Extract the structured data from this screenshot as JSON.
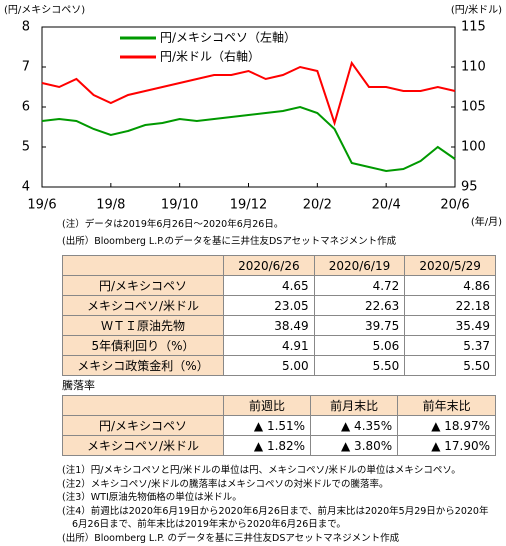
{
  "chart_data": {
    "type": "line",
    "y_label": "(円/メキシコペソ)",
    "y2_label": "(円/米ドル)",
    "x_unit": "(年/月)",
    "categories": [
      "19/6",
      null,
      null,
      null,
      "19/8",
      null,
      null,
      null,
      "19/10",
      null,
      null,
      null,
      "19/12",
      null,
      null,
      null,
      "20/2",
      null,
      null,
      null,
      "20/4",
      null,
      null,
      null,
      "20/6"
    ],
    "series": [
      {
        "name": "円/メキシコペソ（左軸）",
        "color": "#009900",
        "values": [
          5.65,
          5.7,
          5.65,
          5.45,
          5.3,
          5.4,
          5.55,
          5.6,
          5.7,
          5.65,
          5.7,
          5.75,
          5.8,
          5.85,
          5.9,
          6.0,
          5.85,
          5.45,
          4.6,
          4.5,
          4.4,
          4.45,
          4.65,
          5.0,
          4.7
        ]
      },
      {
        "name": "円/米ドル（右軸）",
        "color": "#ff0000",
        "axis": "y2",
        "values": [
          108,
          107.5,
          108.5,
          106.5,
          105.5,
          106.5,
          107,
          107.5,
          108,
          108.5,
          109,
          109,
          109.5,
          108.5,
          109,
          110,
          109.5,
          103,
          110.5,
          107.5,
          107.5,
          107,
          107,
          107.5,
          107
        ]
      }
    ],
    "ylim": [
      4,
      8
    ],
    "yticks": [
      4,
      5,
      6,
      7,
      8
    ],
    "y2lim": [
      95,
      115
    ],
    "y2ticks": [
      95,
      100,
      105,
      110,
      115
    ]
  },
  "chart_notes": [
    "(注）データは2019年6月26日～2020年6月26日。",
    "(出所）Bloomberg L.P.のデータを基に三井住友DSアセットマネジメント作成"
  ],
  "table1": {
    "header": [
      "2020/6/26",
      "2020/6/19",
      "2020/5/29"
    ],
    "rows": [
      [
        "円/メキシコペソ",
        "4.65",
        "4.72",
        "4.86"
      ],
      [
        "メキシコペソ/米ドル",
        "23.05",
        "22.63",
        "22.18"
      ],
      [
        "ＷＴＩ原油先物",
        "38.49",
        "39.75",
        "35.49"
      ],
      [
        "5年債利回り（%）",
        "4.91",
        "5.06",
        "5.37"
      ],
      [
        "メキシコ政策金利（%）",
        "5.00",
        "5.50",
        "5.50"
      ]
    ]
  },
  "table2": {
    "title": "騰落率",
    "header": [
      "前週比",
      "前月末比",
      "前年末比"
    ],
    "rows": [
      [
        "円/メキシコペソ",
        "▲ 1.51%",
        "▲ 4.35%",
        "▲ 18.97%"
      ],
      [
        "メキシコペソ/米ドル",
        "▲ 1.82%",
        "▲ 3.80%",
        "▲ 17.90%"
      ]
    ]
  },
  "notes": [
    "(注1）円/メキシコペソと円/米ドルの単位は円、メキシコペソ/米ドルの単位はメキシコペソ。",
    "(注2）メキシコペソ/米ドルの騰落率はメキシコペソの対米ドルでの騰落率。",
    "(注3）WTI原油先物価格の単位は米ドル。",
    "(注4）前週比は2020年6月19日から2020年6月26日まで、前月末比は2020年5月29日から2020年",
    "6月26日まで、前年末比は2019年末から2020年6月26日まで。",
    "(出所）Bloomberg L.P. のデータを基に三井住友DSアセットマネジメント作成"
  ]
}
